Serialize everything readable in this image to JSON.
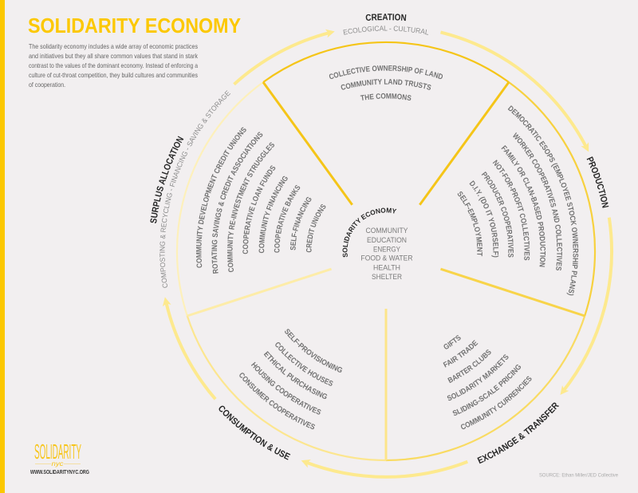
{
  "title": "SOLIDARITY ECONOMY",
  "intro": [
    "The solidarity economy includes a wide array of economic practices",
    "and initiatives but they all share common values that stand in stark",
    "contrast to the values of the dominant economy. Instead of enforcing a",
    "culture of cut-throat competition, they build cultures and communities",
    "of cooperation."
  ],
  "colors": {
    "accent": "#fcc800",
    "ring_arrow": "#fde98e",
    "label_dark": "#262626",
    "item_gray": "#727272"
  },
  "hub": {
    "label": "SOLIDARITY ECONOMY",
    "items": [
      "COMMUNITY",
      "EDUCATION",
      "ENERGY",
      "FOOD & WATER",
      "HEALTH",
      "SHELTER"
    ]
  },
  "sectors": {
    "creation": {
      "label": "CREATION",
      "subtitle": "ECOLOGICAL - CULTURAL",
      "items": [
        "COLLECTIVE OWNERSHIP OF LAND",
        "COMMUNITY LAND TRUSTS",
        "THE COMMONS"
      ]
    },
    "production": {
      "label": "PRODUCTION",
      "items": [
        "DEMOCRATIC ESOPS (EMPLOYEE STOCK OWNERSHIP PLANS)",
        "WORKER COOPERATIVES AND COLLECTIVES",
        "FAMILY OR CLAN-BASED PRODUCTION",
        "NOT-FOR-PROFIT COLLECTIVES",
        "PRODUCER COOPERATIVES",
        "D.I.Y. (DO IT YOURSELF)",
        "SELF-EMPLOYMENT"
      ]
    },
    "exchange": {
      "label": "EXCHANGE & TRANSFER",
      "items": [
        "GIFTS",
        "FAIR TRADE",
        "BARTER CLUBS",
        "SOLIDARITY MARKETS",
        "SLIDING-SCALE PRICING",
        "COMMUNITY CURRENCIES"
      ]
    },
    "consumption": {
      "label": "CONSUMPTION & USE",
      "items": [
        "SELF-PROVISIONING",
        "COLLECTIVE HOUSES",
        "ETHICAL PURCHASING",
        "HOUSING COOPERATIVES",
        "CONSUMER COOPERATIVES"
      ]
    },
    "surplus": {
      "label": "SURPLUS ALLOCATION",
      "subtitle": "COMPOSTING & RECYCLING - FINANCING - SAVING & STORAGE",
      "items": [
        "COMMUNITY DEVELOPMENT CREDIT UNIONS",
        "ROTATING SAVINGS & CREDIT ASSOCIATIONS",
        "COMMUNITY RE-INVESTMENT STRUGGLES",
        "COOPERATIVE LOAN FUNDS",
        "COMMUNITY FINANCING",
        "COOPERATIVE BANKS",
        "SELF-FINANCING",
        "CREDIT UNIONS"
      ]
    }
  },
  "footer": {
    "logo_main": "SOLIDARITY",
    "logo_sub": "nyc",
    "url": "WWW.SOLIDARITYNYC.ORG",
    "source": "SOURCE: Ethan Miller/JED Collective"
  }
}
